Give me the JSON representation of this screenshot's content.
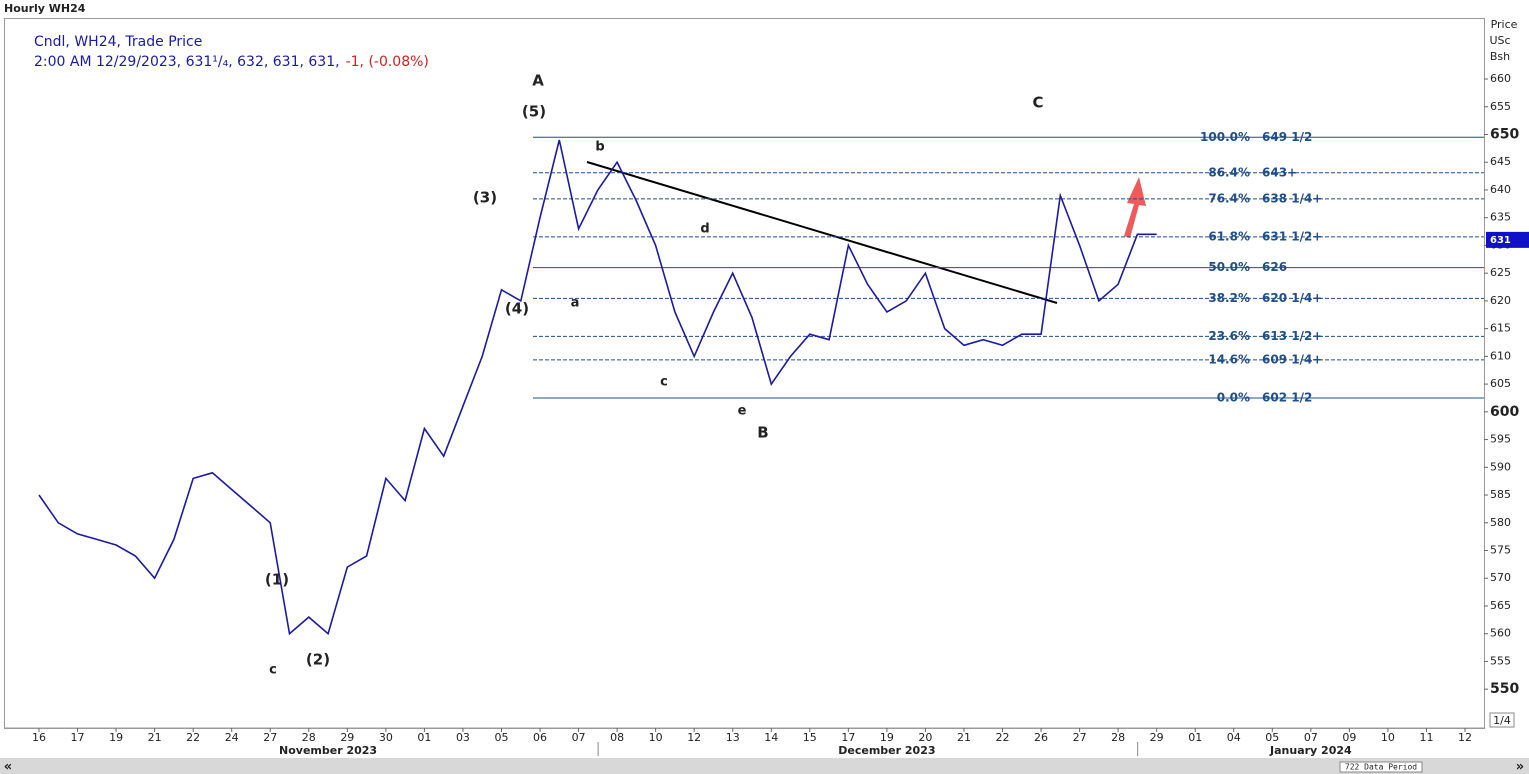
{
  "header": {
    "title": "Hourly WH24",
    "series_name": "Cndl, WH24, Trade Price",
    "quote": "2:00 AM 12/29/2023, 631¹/₄, 632, 631, 631,",
    "change": "-1, (-0.08%)"
  },
  "axis_header": [
    "Price",
    "USc",
    "Bsh"
  ],
  "chart_data": {
    "type": "line",
    "color": "#1a1aa8",
    "categories": [
      "16",
      null,
      "17",
      null,
      "19",
      null,
      "21",
      null,
      "22",
      null,
      "24",
      null,
      "27",
      null,
      "28",
      null,
      "29",
      null,
      "30",
      null,
      "01",
      null,
      "03",
      null,
      "05",
      null,
      "06",
      null,
      "07",
      null,
      "08",
      null,
      "10",
      null,
      "12",
      null,
      "13",
      null,
      "14",
      null,
      "15",
      null,
      "17",
      null,
      "19",
      null,
      "20",
      null,
      "21",
      null,
      "22",
      null,
      "26",
      null,
      "27",
      null,
      "28",
      null,
      "29",
      null,
      "01",
      null,
      "04",
      null,
      "05",
      null,
      "07",
      null,
      "09",
      null,
      "10",
      null,
      "11",
      null,
      "12"
    ],
    "series": [
      {
        "name": "WH24",
        "color": "#1a1aa8",
        "values": [
          585,
          580,
          578,
          577,
          576,
          574,
          570,
          577,
          588,
          589,
          586,
          583,
          580,
          560,
          563,
          560,
          572,
          574,
          588,
          584,
          597,
          592,
          601,
          610,
          622,
          620,
          635,
          649,
          633,
          640,
          645,
          638,
          630,
          618,
          610,
          618,
          625,
          617,
          605,
          610,
          614,
          613,
          630,
          623,
          618,
          620,
          625,
          615,
          612,
          613,
          612,
          614,
          614,
          639,
          630,
          620,
          623,
          632,
          632,
          null,
          null,
          null,
          null,
          null,
          null,
          null,
          null,
          null,
          null,
          null,
          null,
          null,
          null,
          null,
          null
        ]
      }
    ],
    "months": [
      "November 2023",
      "December 2023",
      "January 2024"
    ],
    "ylim": [
      543,
      671
    ],
    "yticks": [
      550,
      555,
      560,
      565,
      570,
      575,
      580,
      585,
      590,
      595,
      600,
      605,
      610,
      615,
      620,
      625,
      630,
      635,
      640,
      645,
      650,
      655,
      660
    ],
    "last_price": 631,
    "fib_levels": [
      {
        "percent": "100.0%",
        "label": "649 1/2",
        "value": 649.5
      },
      {
        "percent": "86.4%",
        "label": "643+",
        "value": 643.1
      },
      {
        "percent": "76.4%",
        "label": "638 1/4+",
        "value": 638.4
      },
      {
        "percent": "61.8%",
        "label": "631 1/2+",
        "value": 631.55
      },
      {
        "percent": "50.0%",
        "label": "626",
        "value": 626
      },
      {
        "percent": "38.2%",
        "label": "620 1/4+",
        "value": 620.45
      },
      {
        "percent": "23.6%",
        "label": "613 1/2+",
        "value": 613.6
      },
      {
        "percent": "14.6%",
        "label": "609 1/4+",
        "value": 609.36
      },
      {
        "percent": "0.0%",
        "label": "602 1/2",
        "value": 602.5
      }
    ],
    "wave_labels": [
      "A",
      "(5)",
      "(3)",
      "(4)",
      "(1)",
      "(2)",
      "c",
      "a",
      "b",
      "c",
      "d",
      "e",
      "B",
      "C"
    ]
  },
  "footer": {
    "period": "722 Data Period",
    "page": "1/4",
    "left": "«",
    "right": "»"
  }
}
